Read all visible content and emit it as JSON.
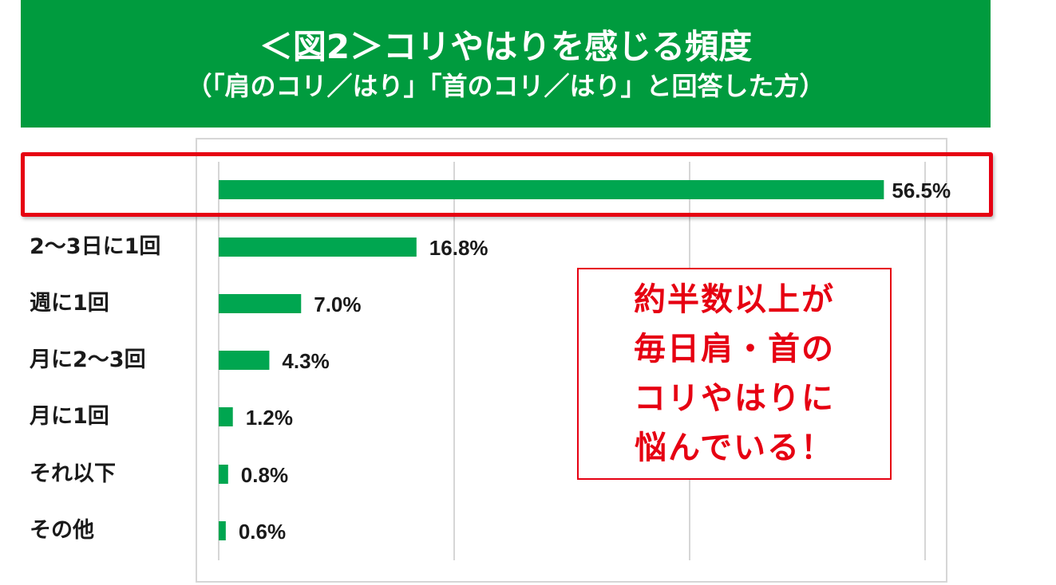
{
  "header": {
    "title": "＜図2＞コリやはりを感じる頻度",
    "subtitle": "（「肩のコリ／はり」「首のコリ／はり」と回答した方）"
  },
  "callout": {
    "lines": [
      "約半数以上が",
      "毎日肩・首の",
      "コリやはりに",
      "悩んでいる！"
    ]
  },
  "colors": {
    "header_bg": "#009b3e",
    "bar": "#00a650",
    "highlight": "#e60012",
    "gridline": "#d6d6d6"
  },
  "chart_data": {
    "type": "bar",
    "orientation": "horizontal",
    "title": "＜図2＞コリやはりを感じる頻度",
    "subtitle": "（「肩のコリ／はり」「首のコリ／はり」と回答した方）",
    "categories": [
      "",
      "2～3日に1回",
      "週に1回",
      "月に2～3回",
      "月に1回",
      "それ以下",
      "その他"
    ],
    "values": [
      56.5,
      16.8,
      7.0,
      4.3,
      1.2,
      0.8,
      0.6
    ],
    "data_labels": [
      "56.5%",
      "16.8%",
      "7.0%",
      "4.3%",
      "1.2%",
      "0.8%",
      "0.6%"
    ],
    "xlim": [
      0,
      60
    ],
    "gridlines_at": [
      20,
      40,
      60
    ],
    "grid": true,
    "xlabel": "",
    "ylabel": "",
    "unit": "%",
    "highlighted_category_index": 0
  }
}
